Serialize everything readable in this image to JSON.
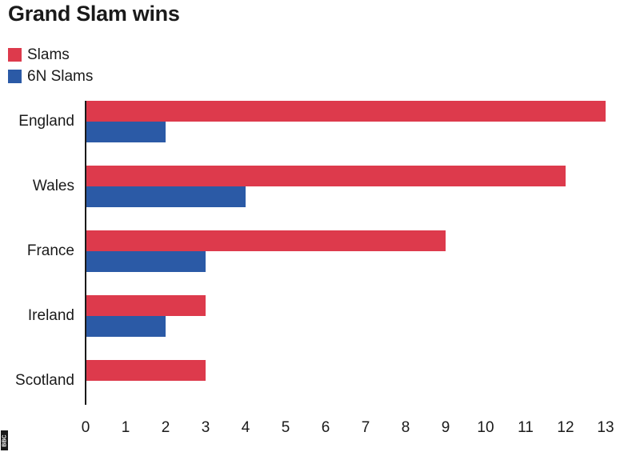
{
  "header": {
    "title": "Grand Slam wins"
  },
  "legend": [
    {
      "label": "Slams",
      "color": "#dd3a4c"
    },
    {
      "label": "6N Slams",
      "color": "#2b5aa6"
    }
  ],
  "logo": {
    "text": "BBC"
  },
  "chart_data": {
    "type": "bar",
    "orientation": "horizontal",
    "title": "Grand Slam wins",
    "categories": [
      "England",
      "Wales",
      "France",
      "Ireland",
      "Scotland"
    ],
    "series": [
      {
        "name": "Slams",
        "color": "#dd3a4c",
        "values": [
          13,
          12,
          9,
          3,
          3
        ]
      },
      {
        "name": "6N Slams",
        "color": "#2b5aa6",
        "values": [
          2,
          4,
          3,
          2,
          0
        ]
      }
    ],
    "xlim": [
      0,
      13
    ],
    "xticks": [
      "0",
      "1",
      "2",
      "3",
      "4",
      "5",
      "6",
      "7",
      "8",
      "9",
      "10",
      "11",
      "12",
      "13"
    ],
    "grid": false,
    "legend_position": "top-left"
  }
}
